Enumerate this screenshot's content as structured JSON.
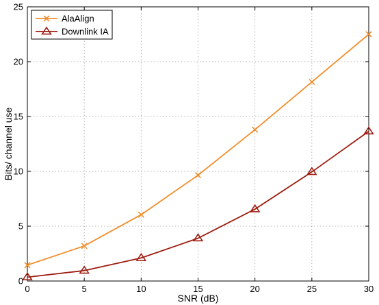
{
  "chart_data": {
    "type": "line",
    "title": "",
    "xlabel": "SNR (dB)",
    "ylabel": "Bits/ channel use",
    "x": [
      0,
      5,
      10,
      15,
      20,
      25,
      30
    ],
    "xlim": [
      0,
      30
    ],
    "ylim": [
      0,
      25
    ],
    "xticks": [
      0,
      5,
      10,
      15,
      20,
      25,
      30
    ],
    "yticks": [
      0,
      5,
      10,
      15,
      20,
      25
    ],
    "grid": true,
    "legend_position": "top-left",
    "series": [
      {
        "name": "AlaAlign",
        "color": "#f28e2b",
        "marker": "x",
        "values": [
          1.45,
          3.2,
          6.05,
          9.65,
          13.8,
          18.15,
          22.5
        ]
      },
      {
        "name": "Downlink IA",
        "color": "#9e1c10",
        "marker": "triangle",
        "values": [
          0.35,
          0.95,
          2.1,
          3.9,
          6.55,
          9.95,
          13.65
        ]
      }
    ]
  }
}
